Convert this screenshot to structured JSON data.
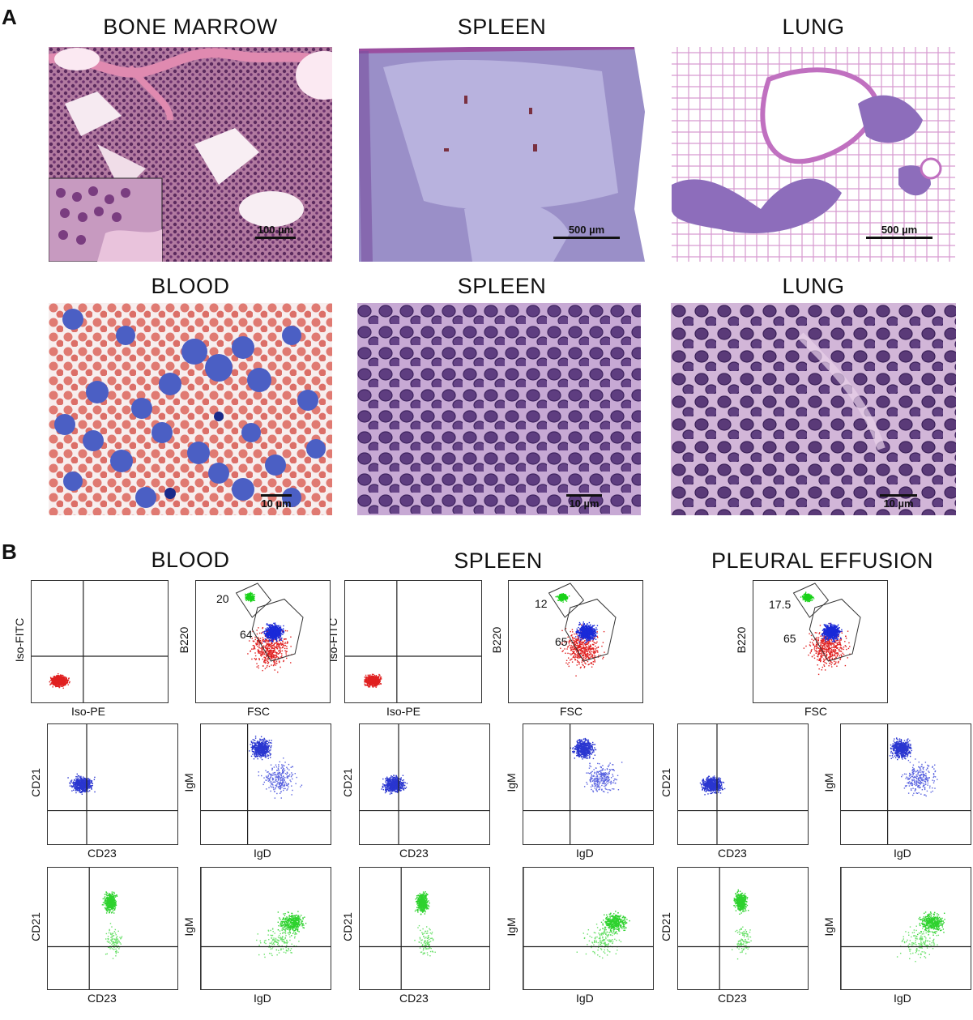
{
  "panel_a": {
    "letter": "A",
    "row1_titles": [
      "BONE MARROW",
      "SPLEEN",
      "LUNG"
    ],
    "row2_titles": [
      "BLOOD",
      "SPLEEN",
      "LUNG"
    ],
    "scalebars": {
      "bone_marrow": "100 µm",
      "spleen_low": "500 µm",
      "lung_low": "500 µm",
      "blood": "10 µm",
      "spleen_high": "10 µm",
      "lung_high": "10 µm"
    }
  },
  "panel_b": {
    "letter": "B",
    "group_titles": [
      "BLOOD",
      "SPLEEN",
      "PLEURAL EFFUSION"
    ],
    "row1": {
      "iso_y": "Iso-FITC",
      "iso_x": "Iso-PE",
      "b220_y": "B220",
      "fsc_x": "FSC"
    },
    "gates": {
      "blood": {
        "green": "20",
        "blue": "64"
      },
      "spleen": {
        "green": "12",
        "blue": "65"
      },
      "pleural": {
        "green": "17.5",
        "blue": "65"
      }
    },
    "axis": {
      "cd21": "CD21",
      "cd23": "CD23",
      "igm": "IgM",
      "igd": "IgD"
    }
  }
}
